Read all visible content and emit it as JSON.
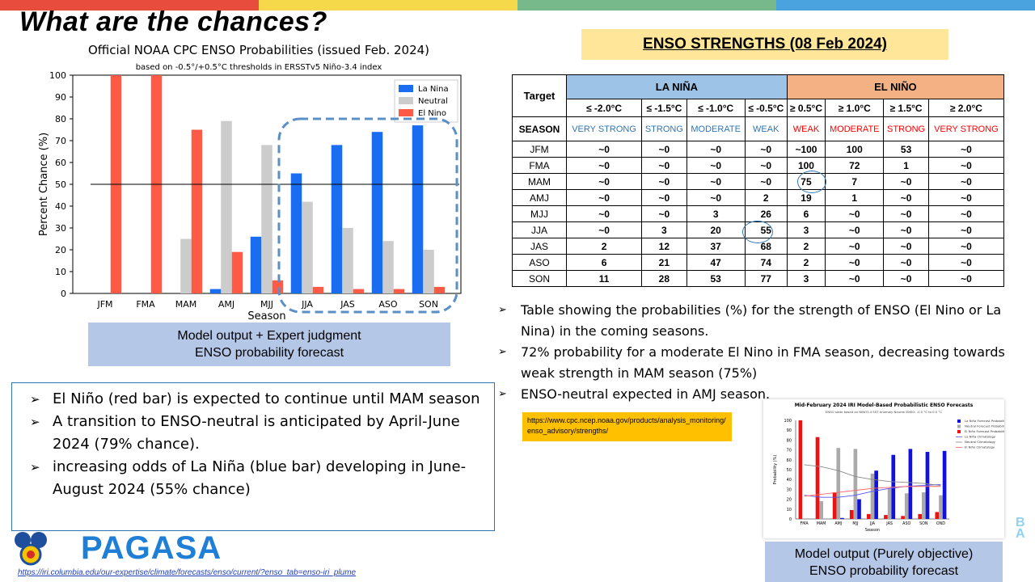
{
  "colors": {
    "top_bar": [
      "#e84c3d",
      "#f5d94a",
      "#77b98b",
      "#4aa3df"
    ],
    "la_nina": "#1a6cf0",
    "neutral": "#cccccc",
    "el_nino": "#ff5a45",
    "highlight_dash": "#5b8fc7"
  },
  "slide": {
    "title": "What are the chances?"
  },
  "cpc_chart": {
    "title": "Official NOAA CPC ENSO Probabilities (issued Feb. 2024)",
    "subtitle": "based on -0.5°/+0.5°C thresholds in ERSSTv5 Niño-3.4 index"
  },
  "chart_data": [
    {
      "type": "bar",
      "title": "Official NOAA CPC ENSO Probabilities (issued Feb. 2024)",
      "subtitle": "based on -0.5°/+0.5°C thresholds in ERSSTv5 Niño-3.4 index",
      "xlabel": "Season",
      "ylabel": "Percent Chance (%)",
      "ylim": [
        0,
        100
      ],
      "yticks": [
        "0",
        "10",
        "20",
        "30",
        "40",
        "50",
        "60",
        "70",
        "80",
        "90",
        "100"
      ],
      "categories": [
        "JFM",
        "FMA",
        "MAM",
        "AMJ",
        "MJJ",
        "JJA",
        "JAS",
        "ASO",
        "SON"
      ],
      "series": [
        {
          "name": "La Nina",
          "color": "#1a6cf0",
          "values": [
            0,
            0,
            0,
            2,
            26,
            55,
            68,
            74,
            77
          ]
        },
        {
          "name": "Neutral",
          "color": "#cccccc",
          "values": [
            0,
            0,
            25,
            79,
            68,
            42,
            30,
            24,
            20
          ]
        },
        {
          "name": "El Nino",
          "color": "#ff5a45",
          "values": [
            100,
            100,
            75,
            19,
            6,
            3,
            2,
            2,
            3
          ]
        }
      ],
      "reference_line": 50,
      "legend": "top-right",
      "grid": false
    },
    {
      "type": "bar",
      "title": "Mid-February 2024 IRI Model-Based Probabilistic ENSO Forecasts",
      "subtitle": "ENSO state based on NINO3.4 SST Anomaly Neutral ENSO: -0.5 °C to 0.5 °C",
      "xlabel": "Season",
      "ylabel": "Probability (%)",
      "ylim": [
        0,
        100
      ],
      "yticks": [
        "0",
        "10",
        "20",
        "30",
        "40",
        "50",
        "60",
        "70",
        "80",
        "90",
        "100"
      ],
      "categories": [
        "FMA",
        "MAM",
        "AMJ",
        "MJJ",
        "JJA",
        "JAS",
        "ASO",
        "SON",
        "OND"
      ],
      "series": [
        {
          "name": "La Niña Forecast Probability",
          "color": "#1111dd",
          "values": [
            0,
            0,
            1,
            20,
            49,
            65,
            71,
            68,
            69
          ]
        },
        {
          "name": "Neutral Forecast Probability",
          "color": "#aaaaaa",
          "values": [
            0,
            18,
            72,
            71,
            46,
            31,
            26,
            27,
            24
          ]
        },
        {
          "name": "El Niño Forecast Probability",
          "color": "#ee1111",
          "values": [
            100,
            83,
            27,
            9,
            5,
            4,
            3,
            5,
            7
          ]
        },
        {
          "name": "La Niña Climatology",
          "color": "#5555ff",
          "values": [
            24,
            22,
            22,
            24,
            28,
            31,
            33,
            34,
            35
          ]
        },
        {
          "name": "Neutral Climatology",
          "color": "#888888",
          "values": [
            55,
            53,
            49,
            43,
            40,
            38,
            37,
            36,
            34
          ]
        },
        {
          "name": "El Niño Climatology",
          "color": "#ff6666",
          "values": [
            23,
            25,
            27,
            29,
            31,
            32,
            33,
            33,
            33
          ]
        }
      ],
      "legend": "top-right"
    }
  ],
  "cpc_caption": {
    "line1": "Model output + Expert judgment",
    "line2": "ENSO probability forecast"
  },
  "left_bullets": [
    "El Niño (red bar) is expected to continue until MAM season",
    "A transition to ENSO-neutral is anticipated by April-June 2024 (79% chance).",
    "increasing odds of La Niña (blue bar) developing in June-August 2024 (55% chance)"
  ],
  "strengths": {
    "title": "ENSO STRENGTHS (08 Feb 2024)",
    "target_label": "Target",
    "la_nina_label": "LA NIÑA",
    "el_nino_label": "EL NIÑO",
    "season_label": "SEASON",
    "thresholds": [
      "≤ -2.0°C",
      "≤ -1.5°C",
      "≤ -1.0°C",
      "≤ -0.5°C",
      "≥ 0.5°C",
      "≥ 1.0°C",
      "≥ 1.5°C",
      "≥ 2.0°C"
    ],
    "categories": [
      "VERY STRONG",
      "STRONG",
      "MODERATE",
      "WEAK",
      "WEAK",
      "MODERATE",
      "STRONG",
      "VERY STRONG"
    ],
    "rows": [
      {
        "season": "JFM",
        "values": [
          "~0",
          "~0",
          "~0",
          "~0",
          "~100",
          "100",
          "53",
          "~0"
        ]
      },
      {
        "season": "FMA",
        "values": [
          "~0",
          "~0",
          "~0",
          "~0",
          "100",
          "72",
          "1",
          "~0"
        ]
      },
      {
        "season": "MAM",
        "values": [
          "~0",
          "~0",
          "~0",
          "~0",
          "75",
          "7",
          "~0",
          "~0"
        ]
      },
      {
        "season": "AMJ",
        "values": [
          "~0",
          "~0",
          "~0",
          "2",
          "19",
          "1",
          "~0",
          "~0"
        ]
      },
      {
        "season": "MJJ",
        "values": [
          "~0",
          "~0",
          "3",
          "26",
          "6",
          "~0",
          "~0",
          "~0"
        ]
      },
      {
        "season": "JJA",
        "values": [
          "~0",
          "3",
          "20",
          "55",
          "3",
          "~0",
          "~0",
          "~0"
        ]
      },
      {
        "season": "JAS",
        "values": [
          "2",
          "12",
          "37",
          "68",
          "2",
          "~0",
          "~0",
          "~0"
        ]
      },
      {
        "season": "ASO",
        "values": [
          "6",
          "21",
          "47",
          "74",
          "2",
          "~0",
          "~0",
          "~0"
        ]
      },
      {
        "season": "SON",
        "values": [
          "11",
          "28",
          "53",
          "77",
          "3",
          "~0",
          "~0",
          "~0"
        ]
      }
    ]
  },
  "right_bullets": [
    "Table showing the probabilities (%) for the strength of ENSO (El Nino or La Nina) in the coming seasons.",
    "72% probability for a moderate El Nino in FMA season, decreasing towards weak strength in MAM season (75%)",
    "ENSO-neutral expected in AMJ season."
  ],
  "cpc_link": "https://www.cpc.ncep.noaa.gov/products/analysis_monitoring/enso_advisory/strengths/",
  "iri_caption": {
    "line1": "Model output (Purely objective)",
    "line2": "ENSO probability forecast"
  },
  "logo": {
    "text": "PAGASA"
  },
  "footer_link": "https://iri.columbia.edu/our-expertise/climate/forecasts/enso/current/?enso_tab=enso-iri_plume"
}
